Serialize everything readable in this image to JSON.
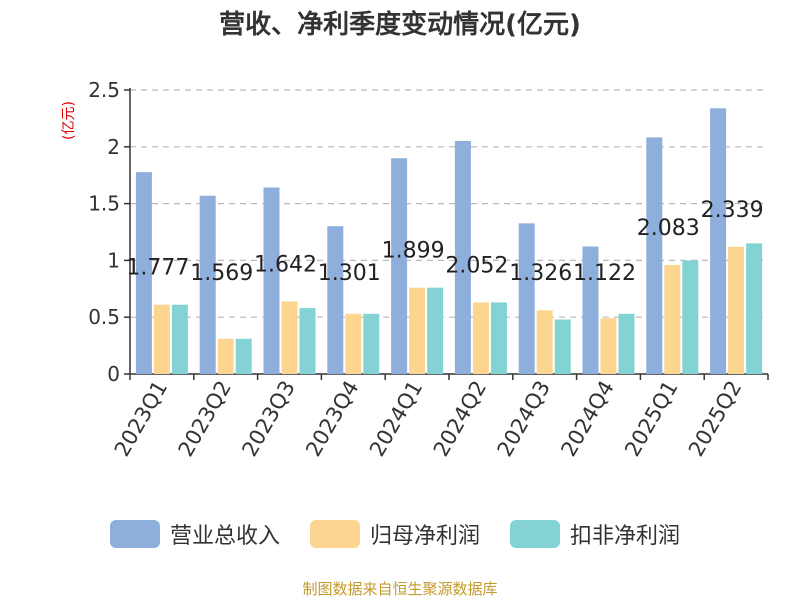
{
  "chart_data": {
    "type": "bar",
    "title": "营收、净利季度变动情况(亿元)",
    "ylabel": "(亿元)",
    "ylim": [
      0,
      2.5
    ],
    "yticks": [
      "0",
      "0.5",
      "1",
      "1.5",
      "2",
      "2.5"
    ],
    "grid": true,
    "legend_position": "bottom",
    "categories": [
      "2023Q1",
      "2023Q2",
      "2023Q3",
      "2023Q4",
      "2024Q1",
      "2024Q2",
      "2024Q3",
      "2024Q4",
      "2025Q1",
      "2025Q2"
    ],
    "series": [
      {
        "name": "营业总收入",
        "color": "#8eaedb",
        "values": [
          1.777,
          1.569,
          1.642,
          1.301,
          1.899,
          2.052,
          1.326,
          1.122,
          2.083,
          2.339
        ],
        "labels": [
          "1.777",
          "1.569",
          "1.642",
          "1.301",
          "1.899",
          "2.052",
          "1.326",
          "1.122",
          "2.083",
          "2.339"
        ]
      },
      {
        "name": "归母净利润",
        "color": "#fcd690",
        "values": [
          0.61,
          0.31,
          0.64,
          0.53,
          0.76,
          0.63,
          0.56,
          0.49,
          0.96,
          1.12
        ]
      },
      {
        "name": "扣非净利润",
        "color": "#83d3d5",
        "values": [
          0.61,
          0.31,
          0.58,
          0.53,
          0.76,
          0.63,
          0.48,
          0.53,
          1.0,
          1.15
        ]
      }
    ]
  },
  "source": "制图数据来自恒生聚源数据库"
}
